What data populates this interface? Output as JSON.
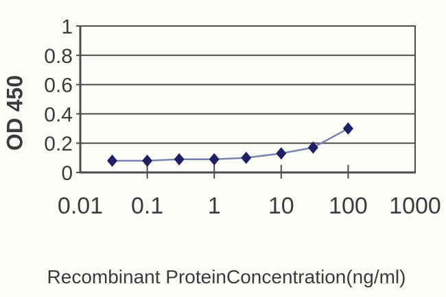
{
  "figure": {
    "background": "#fcfcf9",
    "text_color": "#3b3b3b",
    "axis_color": "#4c4c4c"
  },
  "chart_data": {
    "type": "line",
    "title": "",
    "xlabel": "Recombinant ProteinConcentration(ng/ml)",
    "ylabel": "OD 450",
    "x_scale": "log",
    "xlim": [
      0.01,
      1000
    ],
    "ylim": [
      0,
      1
    ],
    "x_ticks": [
      0.01,
      0.1,
      1,
      10,
      100,
      1000
    ],
    "x_tick_labels": [
      "0.01",
      "0.1",
      "1",
      "10",
      "100",
      "1000"
    ],
    "y_ticks": [
      0,
      0.2,
      0.4,
      0.6,
      0.8,
      1
    ],
    "y_tick_labels": [
      "0",
      "0.2",
      "0.4",
      "0.6",
      "0.8",
      "1"
    ],
    "grid": "horizontal-only",
    "legend": "none",
    "series": [
      {
        "name": "OD 450",
        "marker": "diamond",
        "marker_color": "#1f1f63",
        "line_color": "#7b81ad",
        "x": [
          0.03,
          0.1,
          0.3,
          1,
          3,
          10,
          30,
          100
        ],
        "y": [
          0.08,
          0.08,
          0.09,
          0.09,
          0.1,
          0.13,
          0.17,
          0.3
        ]
      }
    ]
  }
}
